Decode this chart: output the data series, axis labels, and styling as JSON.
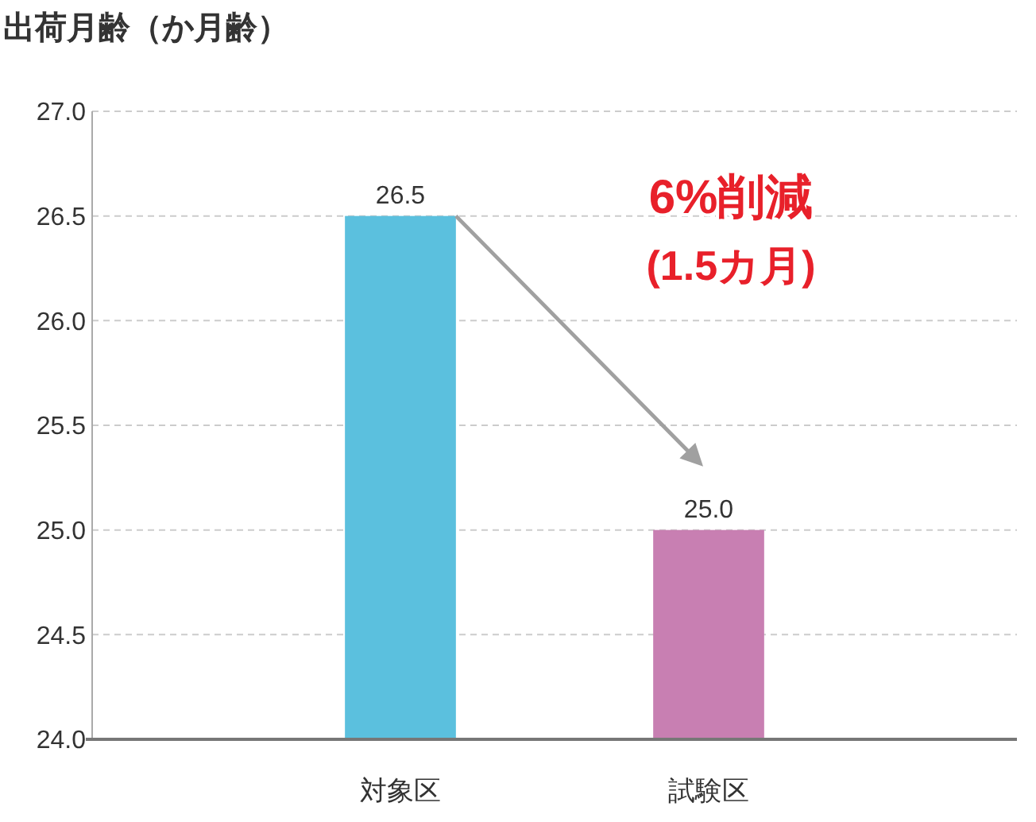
{
  "chart_data": {
    "type": "bar",
    "ylabel": "出荷月齢（か月齢）",
    "categories": [
      "対象区",
      "試験区"
    ],
    "values": [
      26.5,
      25.0
    ],
    "value_labels": [
      "26.5",
      "25.0"
    ],
    "colors": [
      "#5bc0de",
      "#c87fb2"
    ],
    "ylim": [
      24,
      27
    ],
    "yticks": [
      {
        "value": 24,
        "label": "24.0"
      },
      {
        "value": 24.5,
        "label": "24.5"
      },
      {
        "value": 25,
        "label": "25.0"
      },
      {
        "value": 25.5,
        "label": "25.5"
      },
      {
        "value": 26,
        "label": "26.0"
      },
      {
        "value": 26.5,
        "label": "26.5"
      },
      {
        "value": 27,
        "label": "27.0"
      }
    ],
    "grid": "y",
    "annotations": [
      "6%削減",
      "(1.5カ月)"
    ]
  }
}
